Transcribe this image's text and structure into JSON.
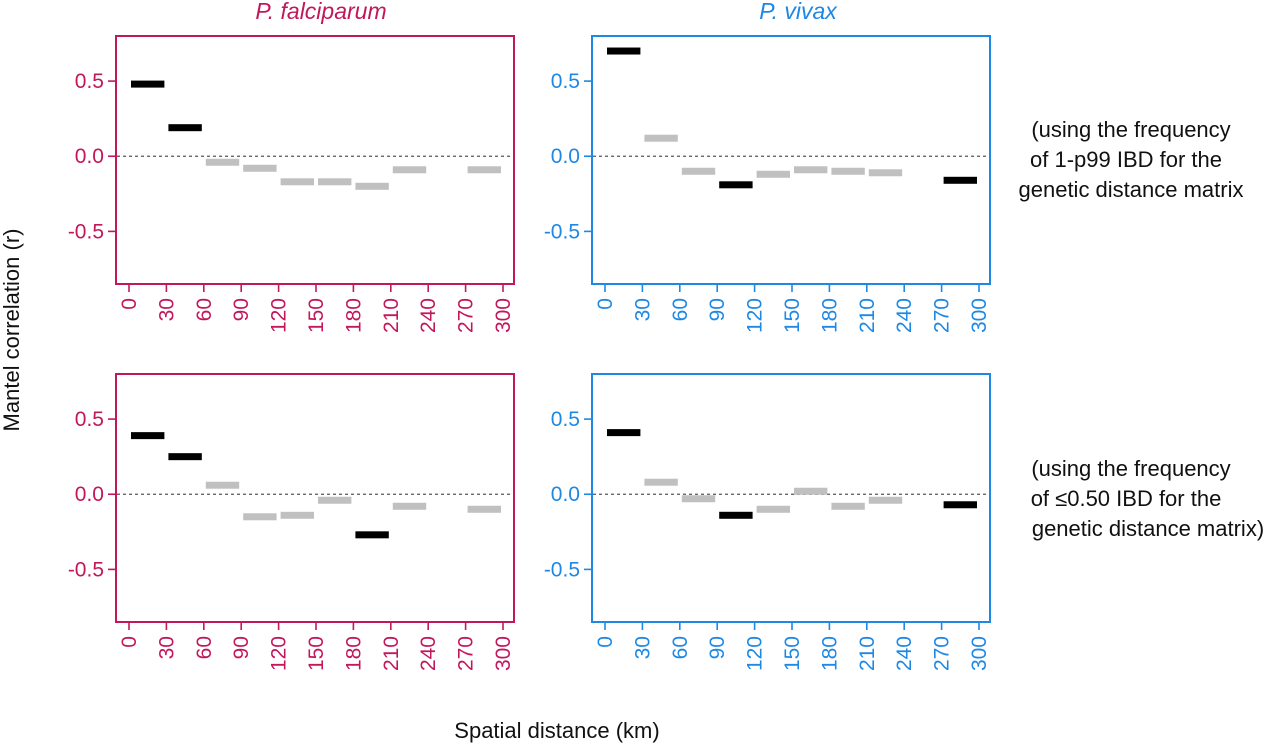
{
  "columns": [
    {
      "title": "P. falciparum",
      "color": "#c2185b"
    },
    {
      "title": "P. vivax",
      "color": "#1e88e5"
    }
  ],
  "axes": {
    "ylabel": "Mantel correlation (r)",
    "xlabel": "Spatial distance (km)"
  },
  "notes": [
    [
      "(using the frequency",
      "of 1-p99 IBD for the",
      "genetic distance matrix"
    ],
    [
      "(using the frequency",
      "of ≤0.50 IBD for the",
      "genetic distance matrix)"
    ]
  ],
  "styles": {
    "significant": "#000000",
    "nonsignificant": "#c0c0c0",
    "zero_line": "#555555"
  },
  "chart_data": [
    {
      "type": "bar",
      "title": "P. falciparum",
      "xlabel": "Spatial distance (km)",
      "ylabel": "Mantel correlation (r)",
      "xlim": [
        0,
        300
      ],
      "ylim": [
        -0.85,
        0.8
      ],
      "xticks": [
        0,
        30,
        60,
        90,
        120,
        150,
        180,
        210,
        240,
        270,
        300
      ],
      "yticks": [
        0.5,
        0.0,
        -0.5
      ],
      "ytick_labels": [
        "0.5",
        "0.0",
        "-0.5"
      ],
      "zero_line": true,
      "bins": [
        [
          0,
          30
        ],
        [
          30,
          60
        ],
        [
          60,
          90
        ],
        [
          90,
          120
        ],
        [
          120,
          150
        ],
        [
          150,
          180
        ],
        [
          180,
          210
        ],
        [
          210,
          240
        ],
        [
          270,
          300
        ]
      ],
      "values": [
        0.48,
        0.19,
        -0.04,
        -0.08,
        -0.17,
        -0.17,
        -0.2,
        -0.09,
        -0.09
      ],
      "significant": [
        true,
        true,
        false,
        false,
        false,
        false,
        false,
        false,
        false
      ]
    },
    {
      "type": "bar",
      "title": "P. vivax",
      "xlabel": "Spatial distance (km)",
      "ylabel": "Mantel correlation (r)",
      "xlim": [
        0,
        300
      ],
      "ylim": [
        -0.85,
        0.8
      ],
      "xticks": [
        0,
        30,
        60,
        90,
        120,
        150,
        180,
        210,
        240,
        270,
        300
      ],
      "yticks": [
        0.5,
        0.0,
        -0.5
      ],
      "ytick_labels": [
        "0.5",
        "0.0",
        "-0.5"
      ],
      "zero_line": true,
      "bins": [
        [
          0,
          30
        ],
        [
          30,
          60
        ],
        [
          60,
          90
        ],
        [
          90,
          120
        ],
        [
          120,
          150
        ],
        [
          150,
          180
        ],
        [
          180,
          210
        ],
        [
          210,
          240
        ],
        [
          270,
          300
        ]
      ],
      "values": [
        0.7,
        0.12,
        -0.1,
        -0.19,
        -0.12,
        -0.09,
        -0.1,
        -0.11,
        -0.16
      ],
      "significant": [
        true,
        false,
        false,
        true,
        false,
        false,
        false,
        false,
        true
      ]
    },
    {
      "type": "bar",
      "title": "P. falciparum",
      "xlabel": "Spatial distance (km)",
      "ylabel": "Mantel correlation (r)",
      "xlim": [
        0,
        300
      ],
      "ylim": [
        -0.85,
        0.8
      ],
      "xticks": [
        0,
        30,
        60,
        90,
        120,
        150,
        180,
        210,
        240,
        270,
        300
      ],
      "yticks": [
        0.5,
        0.0,
        -0.5
      ],
      "ytick_labels": [
        "0.5",
        "0.0",
        "-0.5"
      ],
      "zero_line": true,
      "bins": [
        [
          0,
          30
        ],
        [
          30,
          60
        ],
        [
          60,
          90
        ],
        [
          90,
          120
        ],
        [
          120,
          150
        ],
        [
          150,
          180
        ],
        [
          180,
          210
        ],
        [
          210,
          240
        ],
        [
          270,
          300
        ]
      ],
      "values": [
        0.39,
        0.25,
        0.06,
        -0.15,
        -0.14,
        -0.04,
        -0.27,
        -0.08,
        -0.1
      ],
      "significant": [
        true,
        true,
        false,
        false,
        false,
        false,
        true,
        false,
        false
      ]
    },
    {
      "type": "bar",
      "title": "P. vivax",
      "xlabel": "Spatial distance (km)",
      "ylabel": "Mantel correlation (r)",
      "xlim": [
        0,
        300
      ],
      "ylim": [
        -0.85,
        0.8
      ],
      "xticks": [
        0,
        30,
        60,
        90,
        120,
        150,
        180,
        210,
        240,
        270,
        300
      ],
      "yticks": [
        0.5,
        0.0,
        -0.5
      ],
      "ytick_labels": [
        "0.5",
        "0.0",
        "-0.5"
      ],
      "zero_line": true,
      "bins": [
        [
          0,
          30
        ],
        [
          30,
          60
        ],
        [
          60,
          90
        ],
        [
          90,
          120
        ],
        [
          120,
          150
        ],
        [
          150,
          180
        ],
        [
          180,
          210
        ],
        [
          210,
          240
        ],
        [
          270,
          300
        ]
      ],
      "values": [
        0.41,
        0.08,
        -0.03,
        -0.14,
        -0.1,
        0.02,
        -0.08,
        -0.04,
        -0.07
      ],
      "significant": [
        true,
        false,
        false,
        true,
        false,
        false,
        false,
        false,
        true
      ]
    }
  ]
}
